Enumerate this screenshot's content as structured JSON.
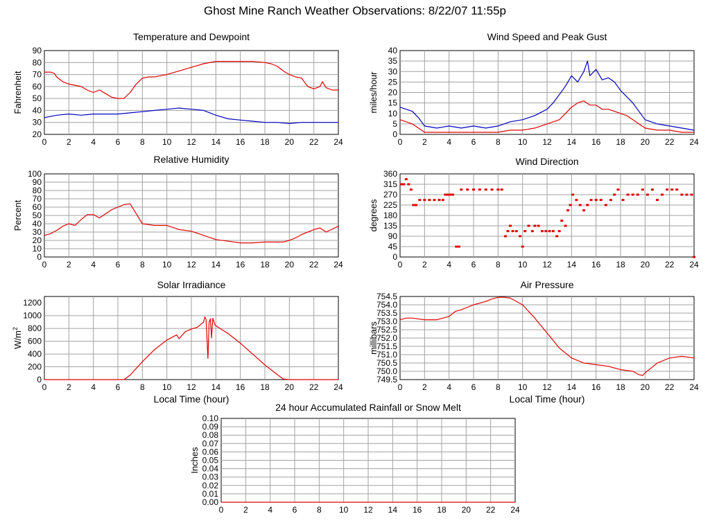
{
  "page": {
    "title": "Ghost Mine Ranch Weather Observations: 8/22/07 11:55p"
  },
  "chart_data": [
    {
      "id": "temp",
      "type": "line",
      "title": "Temperature and Dewpoint",
      "ylabel": "Fahrenheit",
      "xlabel": "",
      "xlim": [
        0,
        24
      ],
      "ylim": [
        20,
        90
      ],
      "yticks": [
        20,
        30,
        40,
        50,
        60,
        70,
        80,
        90
      ],
      "xticks": [
        0,
        2,
        4,
        6,
        8,
        10,
        12,
        14,
        16,
        18,
        20,
        22,
        24
      ],
      "grid": true,
      "series": [
        {
          "color": "#e00000",
          "x": [
            0,
            0.5,
            0.8,
            1.0,
            1.5,
            2.0,
            2.5,
            3.0,
            3.5,
            4.0,
            4.5,
            5.0,
            5.5,
            6.0,
            6.5,
            7.0,
            7.5,
            8.0,
            8.5,
            9.0,
            9.5,
            10.0,
            11.0,
            12.0,
            13.0,
            14.0,
            15.0,
            16.0,
            17.0,
            18.0,
            18.5,
            19.0,
            19.5,
            20.0,
            20.5,
            21.0,
            21.5,
            22.0,
            22.5,
            22.7,
            23.0,
            23.5,
            24.0
          ],
          "y": [
            72,
            72,
            71,
            68,
            64,
            62,
            61,
            60,
            57,
            55,
            57,
            54,
            51,
            50,
            50,
            55,
            62,
            67,
            68,
            68,
            69,
            70,
            73,
            76,
            79,
            81,
            81,
            81,
            81,
            80,
            79,
            77,
            73,
            70,
            68,
            67,
            60,
            58,
            60,
            64,
            59,
            57,
            57
          ]
        },
        {
          "color": "#0000c0",
          "x": [
            0,
            1,
            2,
            3,
            4,
            5,
            6,
            7,
            8,
            9,
            10,
            11,
            12,
            13,
            14,
            15,
            16,
            17,
            18,
            19,
            20,
            21,
            22,
            23,
            24
          ],
          "y": [
            34,
            36,
            37,
            36,
            37,
            37,
            37,
            38,
            39,
            40,
            41,
            42,
            41,
            40,
            36,
            33,
            32,
            31,
            30,
            30,
            29,
            30,
            30,
            30,
            30
          ]
        }
      ]
    },
    {
      "id": "wind",
      "type": "line",
      "title": "Wind Speed and Peak Gust",
      "ylabel": "miles/hour",
      "xlabel": "",
      "xlim": [
        0,
        24
      ],
      "ylim": [
        0,
        40
      ],
      "yticks": [
        0,
        5,
        10,
        15,
        20,
        25,
        30,
        35,
        40
      ],
      "xticks": [
        0,
        2,
        4,
        6,
        8,
        10,
        12,
        14,
        16,
        18,
        20,
        22,
        24
      ],
      "grid": true,
      "series": [
        {
          "color": "#0000c0",
          "x": [
            0,
            0.5,
            1.0,
            1.5,
            2.0,
            3.0,
            4.0,
            5.0,
            6.0,
            7.0,
            8.0,
            9.0,
            10.0,
            11.0,
            12.0,
            12.5,
            13.0,
            13.5,
            14.0,
            14.5,
            15.0,
            15.3,
            15.5,
            16.0,
            16.5,
            17.0,
            17.5,
            18.0,
            18.5,
            19.0,
            19.5,
            20.0,
            21.0,
            22.0,
            23.0,
            24.0
          ],
          "y": [
            13,
            12,
            11,
            8,
            4,
            3,
            4,
            3,
            4,
            3,
            4,
            6,
            7,
            9,
            12,
            15,
            19,
            23,
            28,
            25,
            30,
            35,
            28,
            31,
            26,
            27,
            25,
            21,
            18,
            15,
            11,
            7,
            5,
            4,
            3,
            2
          ]
        },
        {
          "color": "#e00000",
          "x": [
            0,
            0.5,
            1.0,
            1.5,
            2.0,
            3.0,
            4.0,
            5.0,
            6.0,
            7.0,
            8.0,
            9.0,
            10.0,
            11.0,
            12.0,
            13.0,
            13.5,
            14.0,
            14.5,
            15.0,
            15.5,
            16.0,
            16.5,
            17.0,
            17.5,
            18.0,
            18.5,
            19.0,
            19.5,
            20.0,
            21.0,
            22.0,
            23.0,
            24.0
          ],
          "y": [
            7,
            6,
            5,
            3,
            1,
            1,
            1,
            1,
            1,
            1,
            1,
            2,
            2,
            3,
            5,
            7,
            10,
            13,
            15,
            16,
            14,
            14,
            12,
            12,
            11,
            10,
            9,
            7,
            5,
            3,
            2,
            2,
            1,
            1
          ]
        }
      ]
    },
    {
      "id": "rh",
      "type": "line",
      "title": "Relative Humidity",
      "ylabel": "Percent",
      "xlabel": "",
      "xlim": [
        0,
        24
      ],
      "ylim": [
        0,
        100
      ],
      "yticks": [
        0,
        10,
        20,
        30,
        40,
        50,
        60,
        70,
        80,
        90,
        100
      ],
      "xticks": [
        0,
        2,
        4,
        6,
        8,
        10,
        12,
        14,
        16,
        18,
        20,
        22,
        24
      ],
      "grid": true,
      "series": [
        {
          "color": "#e00000",
          "x": [
            0,
            0.5,
            1.0,
            1.5,
            2.0,
            2.5,
            3.0,
            3.5,
            4.0,
            4.5,
            5.0,
            5.5,
            6.0,
            6.5,
            7.0,
            7.5,
            8.0,
            9.0,
            10.0,
            11.0,
            12.0,
            13.0,
            14.0,
            15.0,
            16.0,
            17.0,
            18.0,
            19.0,
            19.5,
            20.0,
            20.5,
            21.0,
            22.0,
            22.5,
            23.0,
            24.0
          ],
          "y": [
            26,
            28,
            32,
            37,
            40,
            38,
            45,
            51,
            51,
            47,
            52,
            57,
            60,
            63,
            64,
            52,
            40,
            38,
            38,
            33,
            31,
            26,
            21,
            19,
            17,
            17,
            18,
            18,
            18,
            20,
            23,
            27,
            33,
            35,
            30,
            37
          ]
        }
      ]
    },
    {
      "id": "wdir",
      "type": "scatter",
      "title": "Wind Direction",
      "ylabel": "degrees",
      "xlabel": "",
      "xlim": [
        0,
        24
      ],
      "ylim": [
        0,
        360
      ],
      "yticks": [
        0,
        45,
        90,
        135,
        180,
        225,
        270,
        315,
        360
      ],
      "xticks": [
        0,
        2,
        4,
        6,
        8,
        10,
        12,
        14,
        16,
        18,
        20,
        22,
        24
      ],
      "grid": true,
      "series": [
        {
          "color": "#e00000",
          "x": [
            0.1,
            0.3,
            0.5,
            0.7,
            0.9,
            1.1,
            1.3,
            1.6,
            2.0,
            2.4,
            2.8,
            3.2,
            3.5,
            3.7,
            3.9,
            4.1,
            4.3,
            4.6,
            4.8,
            5.0,
            5.5,
            6.0,
            6.5,
            7.0,
            7.5,
            8.0,
            8.3,
            8.6,
            8.8,
            9.0,
            9.2,
            9.5,
            9.8,
            10.0,
            10.2,
            10.5,
            10.8,
            11.0,
            11.3,
            11.6,
            11.9,
            12.2,
            12.5,
            12.8,
            13.0,
            13.2,
            13.5,
            13.7,
            13.9,
            14.1,
            14.4,
            14.7,
            15.0,
            15.3,
            15.6,
            16.0,
            16.4,
            16.8,
            17.2,
            17.5,
            17.8,
            18.2,
            18.6,
            19.0,
            19.4,
            19.8,
            20.2,
            20.6,
            21.0,
            21.4,
            21.8,
            22.2,
            22.6,
            23.0,
            23.4,
            23.8,
            24.0
          ],
          "y": [
            315,
            315,
            337,
            315,
            292,
            225,
            225,
            247,
            247,
            247,
            247,
            247,
            247,
            270,
            270,
            270,
            270,
            45,
            45,
            292,
            292,
            292,
            292,
            292,
            292,
            292,
            292,
            90,
            112,
            135,
            112,
            112,
            90,
            45,
            112,
            135,
            112,
            135,
            135,
            112,
            112,
            112,
            112,
            90,
            112,
            157,
            135,
            202,
            225,
            270,
            247,
            225,
            202,
            225,
            247,
            247,
            247,
            225,
            247,
            270,
            292,
            247,
            270,
            270,
            270,
            292,
            270,
            292,
            247,
            270,
            292,
            292,
            292,
            270,
            270,
            270,
            0
          ]
        }
      ]
    },
    {
      "id": "solar",
      "type": "line",
      "title": "Solar Irradiance",
      "ylabel": "W/m",
      "ylabel_sup": "2",
      "xlabel": "Local Time (hour)",
      "xlim": [
        0,
        24
      ],
      "ylim": [
        0,
        1300
      ],
      "yticks": [
        0,
        200,
        400,
        600,
        800,
        1000,
        1200
      ],
      "xticks": [
        0,
        2,
        4,
        6,
        8,
        10,
        12,
        14,
        16,
        18,
        20,
        22,
        24
      ],
      "grid": true,
      "series": [
        {
          "color": "#e00000",
          "x": [
            0,
            6.5,
            7.0,
            8.0,
            9.0,
            10.0,
            10.8,
            11.0,
            11.5,
            12.0,
            12.5,
            13.0,
            13.1,
            13.2,
            13.35,
            13.45,
            13.55,
            13.65,
            13.75,
            13.85,
            13.95,
            14.1,
            14.5,
            15.0,
            16.0,
            17.0,
            18.0,
            19.0,
            19.5,
            20.0,
            24.0
          ],
          "y": [
            0,
            0,
            70,
            280,
            470,
            620,
            700,
            640,
            750,
            790,
            820,
            900,
            980,
            940,
            330,
            900,
            950,
            650,
            960,
            900,
            850,
            830,
            780,
            720,
            570,
            400,
            230,
            80,
            10,
            0,
            0
          ]
        }
      ]
    },
    {
      "id": "pressure",
      "type": "line",
      "title": "Air Pressure",
      "ylabel": "millibars",
      "xlabel": "Local Time (hour)",
      "xlim": [
        0,
        24
      ],
      "ylim": [
        749.5,
        754.5
      ],
      "yticks": [
        749.5,
        750.0,
        750.5,
        751.0,
        751.5,
        752.0,
        752.5,
        753.0,
        753.5,
        754.0,
        754.5
      ],
      "ytick_labels": [
        "749.5",
        "750.0",
        "750.5",
        "751.0",
        "751.5",
        "752.0",
        "752.5",
        "753.0",
        "753.5",
        "754.0",
        "754.5"
      ],
      "xticks": [
        0,
        2,
        4,
        6,
        8,
        10,
        12,
        14,
        16,
        18,
        20,
        22,
        24
      ],
      "grid": true,
      "series": [
        {
          "color": "#e00000",
          "x": [
            0,
            0.5,
            1.0,
            2.0,
            3.0,
            4.0,
            4.5,
            5.0,
            6.0,
            7.0,
            7.5,
            8.0,
            8.5,
            9.0,
            10.0,
            11.0,
            12.0,
            13.0,
            14.0,
            15.0,
            16.0,
            17.0,
            18.0,
            19.0,
            19.5,
            19.8,
            20.0,
            20.5,
            21.0,
            22.0,
            23.0,
            24.0
          ],
          "y": [
            753.1,
            753.2,
            753.2,
            753.1,
            753.1,
            753.3,
            753.6,
            753.7,
            754.0,
            754.2,
            754.35,
            754.45,
            754.45,
            754.4,
            754.0,
            753.2,
            752.3,
            751.4,
            750.8,
            750.5,
            750.4,
            750.3,
            750.1,
            750.0,
            749.8,
            749.75,
            749.9,
            750.2,
            750.5,
            750.8,
            750.9,
            750.8
          ]
        }
      ]
    },
    {
      "id": "rain",
      "type": "line",
      "title": "24 hour Accumulated Rainfall or Snow Melt",
      "ylabel": "Inches",
      "xlabel": "",
      "xlim": [
        0,
        24
      ],
      "ylim": [
        0,
        0.1
      ],
      "yticks": [
        0.0,
        0.01,
        0.02,
        0.03,
        0.04,
        0.05,
        0.06,
        0.07,
        0.08,
        0.09,
        0.1
      ],
      "ytick_labels": [
        "0.00",
        "0.01",
        "0.02",
        "0.03",
        "0.04",
        "0.05",
        "0.06",
        "0.07",
        "0.08",
        "0.09",
        "0.10"
      ],
      "xticks": [
        0,
        2,
        4,
        6,
        8,
        10,
        12,
        14,
        16,
        18,
        20,
        22,
        24
      ],
      "grid": true,
      "series": [
        {
          "color": "#e00000",
          "x": [
            0,
            24
          ],
          "y": [
            0,
            0
          ]
        }
      ]
    }
  ]
}
